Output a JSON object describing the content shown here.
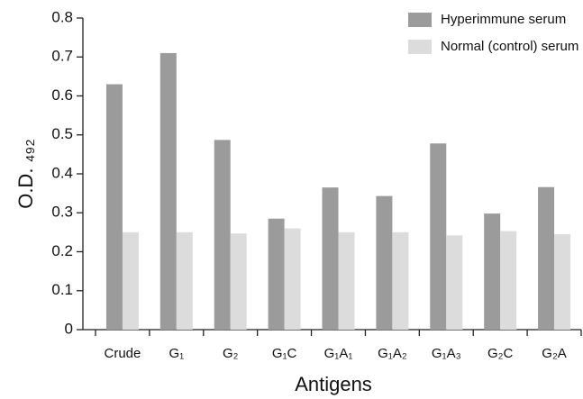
{
  "chart_data": {
    "type": "bar",
    "x_label": "Antigens",
    "y_label": "O.D. ₄₉₂",
    "categories": [
      "Crude",
      "G₁",
      "G₂",
      "G₁C",
      "G₁A₁",
      "G₁A₂",
      "G₁A₃",
      "G₂C",
      "G₂A"
    ],
    "series": [
      {
        "name": "Hyperimmune serum",
        "color": "#9b9b9b",
        "values": [
          0.63,
          0.71,
          0.487,
          0.285,
          0.365,
          0.343,
          0.478,
          0.298,
          0.366
        ]
      },
      {
        "name": "Normal (control) serum",
        "color": "#dcdcdc",
        "values": [
          0.25,
          0.25,
          0.247,
          0.26,
          0.25,
          0.25,
          0.242,
          0.253,
          0.245
        ]
      }
    ],
    "ylim": [
      0,
      0.8
    ],
    "yticks": [
      0,
      0.1,
      0.2,
      0.3,
      0.4,
      0.5,
      0.6,
      0.7,
      0.8
    ],
    "grid": false,
    "legend": "top-right"
  }
}
